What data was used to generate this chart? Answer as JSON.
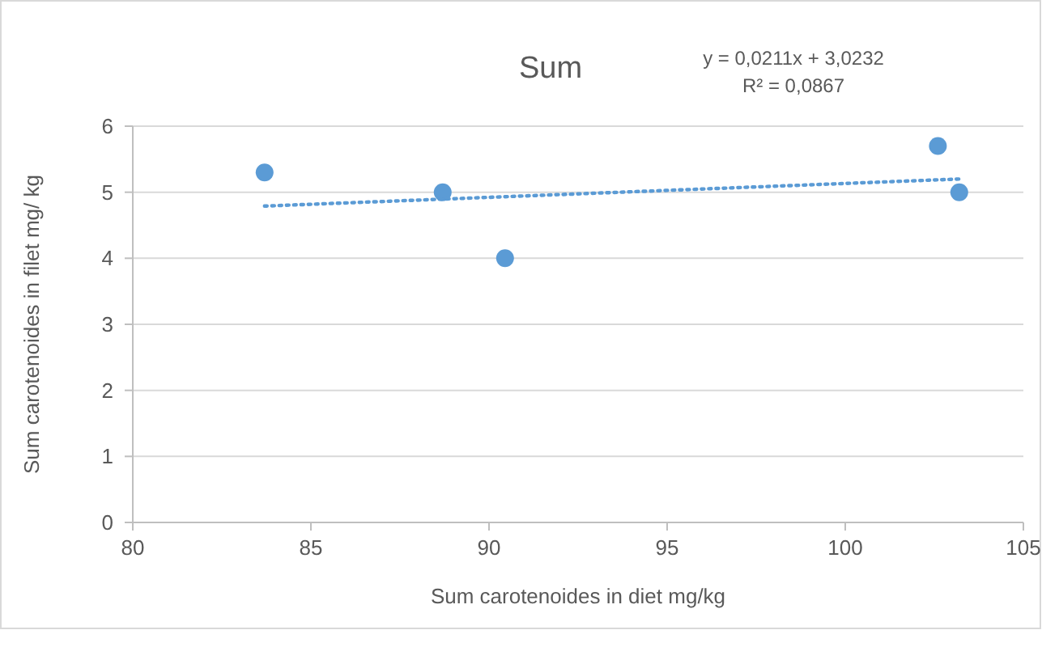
{
  "chart_data": {
    "type": "scatter",
    "title": "Sum",
    "xlabel": "Sum carotenoides in diet mg/kg",
    "ylabel": "Sum carotenoides in filet mg/ kg",
    "annotations": [
      "y = 0,0211x + 3,0232",
      "R² = 0,0867"
    ],
    "series": [
      {
        "color": "#5b9bd5",
        "x": [
          83.7,
          88.7,
          90.45,
          102.6,
          103.2
        ],
        "values": [
          5.3,
          5.0,
          4.0,
          5.7,
          5.0
        ],
        "marker": "circle"
      },
      {
        "type": "line",
        "color": "#5b9bd5",
        "x": [
          83.7,
          103.2
        ],
        "values": [
          4.79,
          5.2
        ],
        "line_style": "dotted",
        "marker": "none"
      }
    ],
    "xlim": [
      80,
      105
    ],
    "xticks": [
      80,
      85,
      90,
      95,
      100,
      105
    ],
    "ylim": [
      0,
      6
    ],
    "yticks": [
      0,
      1,
      2,
      3,
      4,
      5,
      6
    ],
    "grid": "y"
  }
}
